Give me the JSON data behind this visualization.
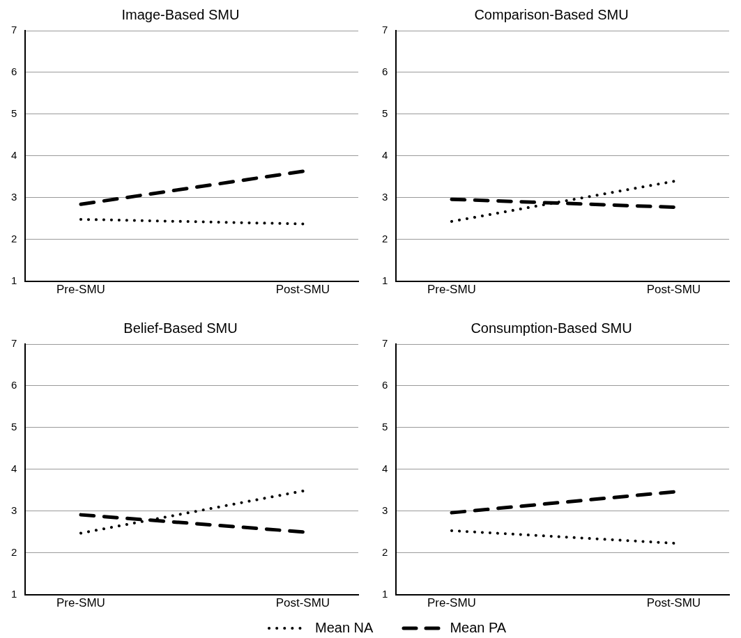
{
  "chart_data": [
    {
      "type": "line",
      "title": "Image-Based SMU",
      "categories": [
        "Pre-SMU",
        "Post-SMU"
      ],
      "ylim": [
        1,
        7
      ],
      "yticks": [
        1,
        2,
        3,
        4,
        5,
        6,
        7
      ],
      "grid": "y",
      "legend": false,
      "series": [
        {
          "color": "#000000",
          "line_style": "dotted",
          "values": [
            2.48,
            2.37
          ]
        },
        {
          "color": "#000000",
          "line_style": "dashed",
          "values": [
            2.84,
            3.63
          ]
        }
      ]
    },
    {
      "type": "line",
      "title": "Comparison-Based SMU",
      "categories": [
        "Pre-SMU",
        "Post-SMU"
      ],
      "ylim": [
        1,
        7
      ],
      "yticks": [
        1,
        2,
        3,
        4,
        5,
        6,
        7
      ],
      "grid": "y",
      "legend": false,
      "series": [
        {
          "color": "#000000",
          "line_style": "dotted",
          "values": [
            2.43,
            3.39
          ]
        },
        {
          "color": "#000000",
          "line_style": "dashed",
          "values": [
            2.96,
            2.77
          ]
        }
      ]
    },
    {
      "type": "line",
      "title": "Belief-Based SMU",
      "categories": [
        "Pre-SMU",
        "Post-SMU"
      ],
      "ylim": [
        1,
        7
      ],
      "yticks": [
        1,
        2,
        3,
        4,
        5,
        6,
        7
      ],
      "grid": "y",
      "legend": false,
      "series": [
        {
          "color": "#000000",
          "line_style": "dotted",
          "values": [
            2.47,
            3.48
          ]
        },
        {
          "color": "#000000",
          "line_style": "dashed",
          "values": [
            2.91,
            2.5
          ]
        }
      ]
    },
    {
      "type": "line",
      "title": "Consumption-Based SMU",
      "categories": [
        "Pre-SMU",
        "Post-SMU"
      ],
      "ylim": [
        1,
        7
      ],
      "yticks": [
        1,
        2,
        3,
        4,
        5,
        6,
        7
      ],
      "grid": "y",
      "legend": "bottom",
      "series": [
        {
          "name": "Mean NA",
          "color": "#000000",
          "line_style": "dotted",
          "values": [
            2.53,
            2.23
          ]
        },
        {
          "name": "Mean PA",
          "color": "#000000",
          "line_style": "dashed",
          "values": [
            2.96,
            3.46
          ]
        }
      ]
    }
  ]
}
